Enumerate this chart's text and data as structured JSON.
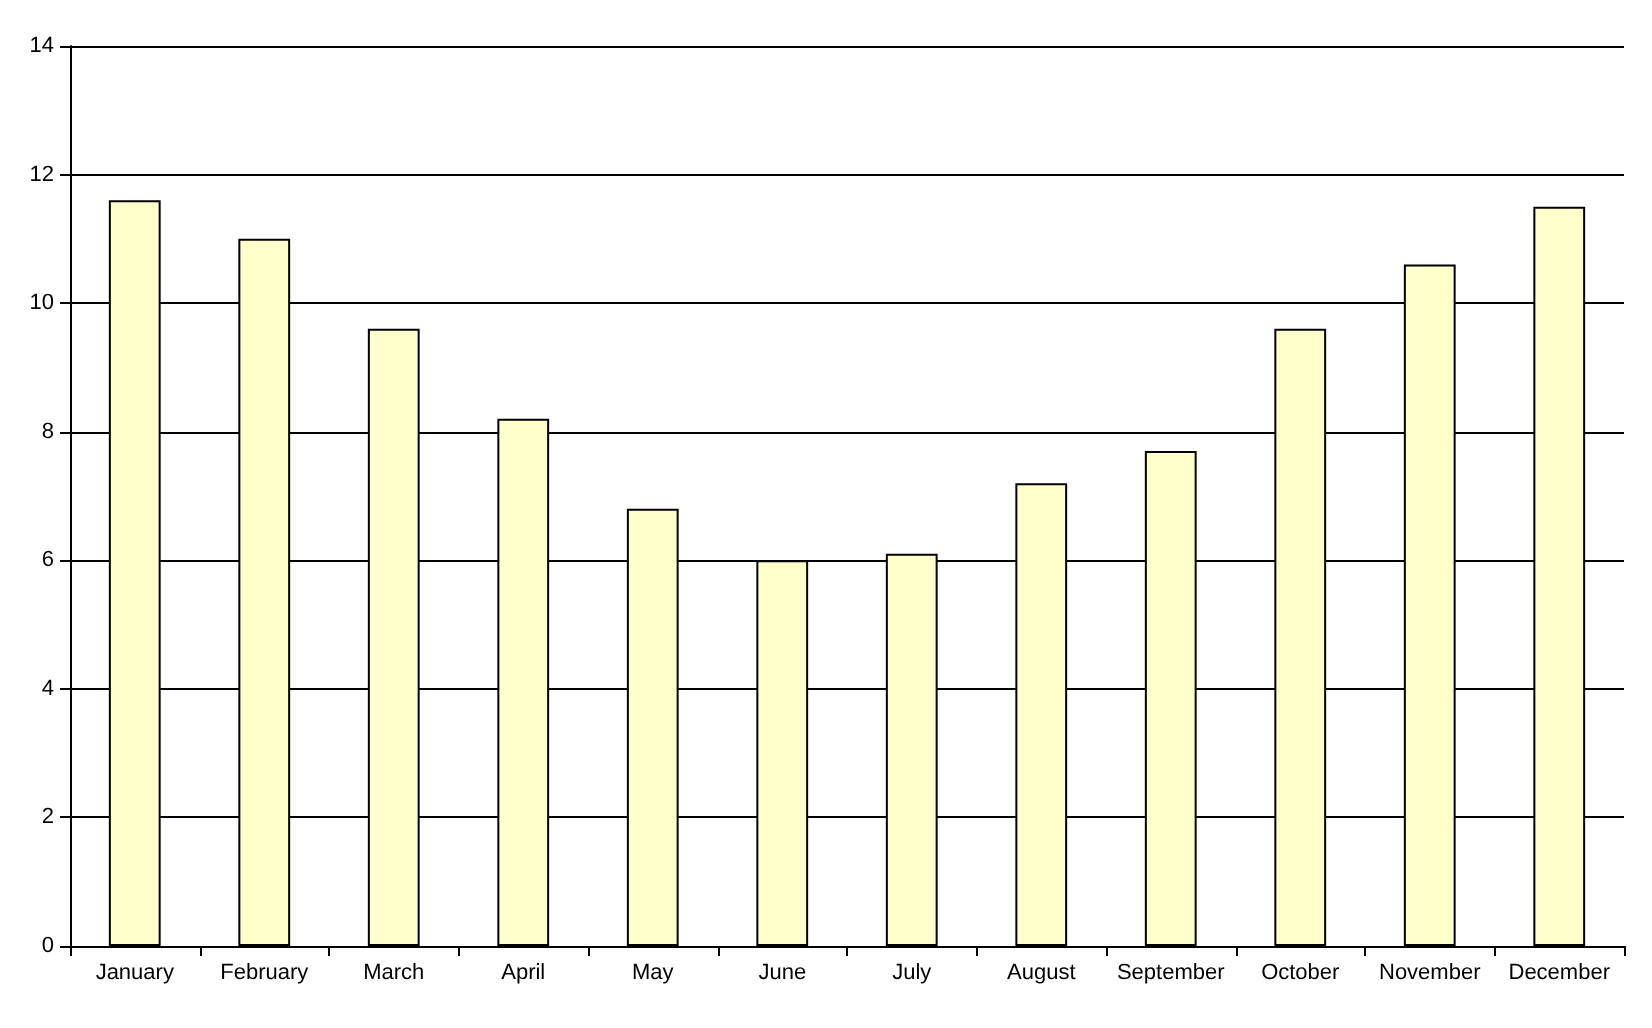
{
  "chart_data": {
    "type": "bar",
    "categories": [
      "January",
      "February",
      "March",
      "April",
      "May",
      "June",
      "July",
      "August",
      "September",
      "October",
      "November",
      "December"
    ],
    "values": [
      11.6,
      11.0,
      9.6,
      8.2,
      6.8,
      6.0,
      6.1,
      7.2,
      7.7,
      9.6,
      10.6,
      11.5
    ],
    "color": "#ffffcc",
    "ylim": [
      0,
      14
    ],
    "yticks": [
      0,
      2,
      4,
      6,
      8,
      10,
      12,
      14
    ],
    "grid": "y"
  }
}
